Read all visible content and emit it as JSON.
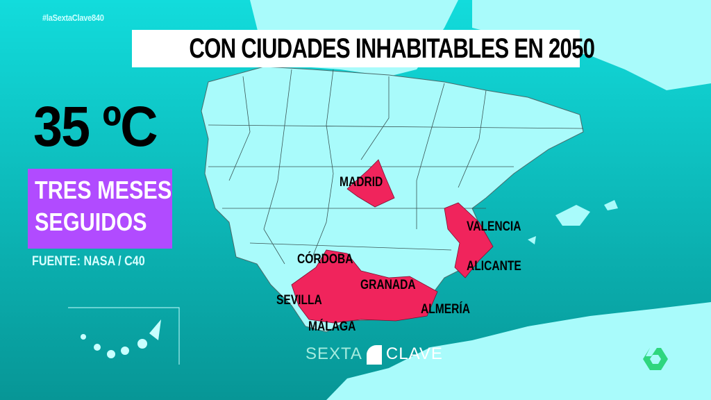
{
  "hashtag": "#laSextaClave840",
  "title": "CON CIUDADES INHABITABLES EN 2050",
  "temperature": "35 ºC",
  "duration_lines": [
    "TRES MESES",
    "SEGUIDOS"
  ],
  "source": "FUENTE: NASA / C40",
  "highlighted_regions": [
    "MADRID",
    "VALENCIA",
    "ALICANTE",
    "CÓRDOBA",
    "GRANADA",
    "SEVILLA",
    "ALMERÍA",
    "MÁLAGA"
  ],
  "colors": {
    "sea_top": "#12dcdc",
    "sea_bottom": "#079696",
    "land": "#a9fbfb",
    "highlight": "#f0245c",
    "purple_box": "#b14bff",
    "channel_logo": "#2ed67e"
  },
  "program_logo": {
    "left": "SEXTA",
    "right": "CLAVE"
  },
  "channel_logo": "6"
}
